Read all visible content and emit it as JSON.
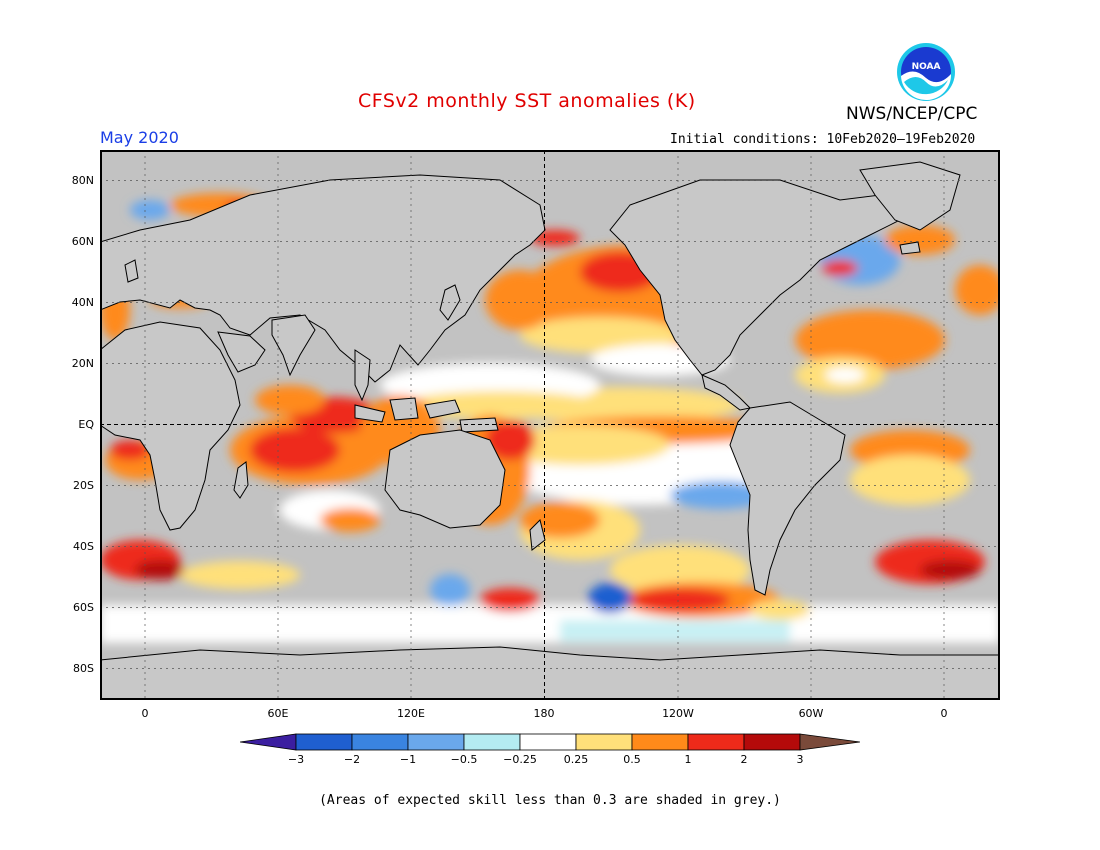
{
  "header": {
    "title": "CFSv2 monthly SST anomalies (K)",
    "agency": "NWS/NCEP/CPC",
    "valid_month": "May 2020",
    "initial_conditions": "Initial conditions: 10Feb2020–19Feb2020"
  },
  "logo": {
    "icon": "noaa-logo",
    "text": "NOAA"
  },
  "map": {
    "lat_labels": [
      "80N",
      "60N",
      "40N",
      "20N",
      "EQ",
      "20S",
      "40S",
      "60S",
      "80S"
    ],
    "lon_labels": [
      "0",
      "60E",
      "120E",
      "180",
      "120W",
      "60W",
      "0"
    ],
    "land_color": "#c8c8c8",
    "skill_mask_color": "#c0c0c0"
  },
  "colorbar": {
    "ticks": [
      "−3",
      "−2",
      "−1",
      "−0.5",
      "−0.25",
      "0.25",
      "0.5",
      "1",
      "2",
      "3"
    ],
    "colors": [
      "#3b1ea0",
      "#1f5fd0",
      "#3a84e0",
      "#6aa8ec",
      "#b4ecf2",
      "#ffffff",
      "#ffe07a",
      "#ff8a1a",
      "#ee2a1a",
      "#b40a0a",
      "#7a4a3a"
    ]
  },
  "footnote": "(Areas of expected skill less than 0.3 are shaded in grey.)"
}
